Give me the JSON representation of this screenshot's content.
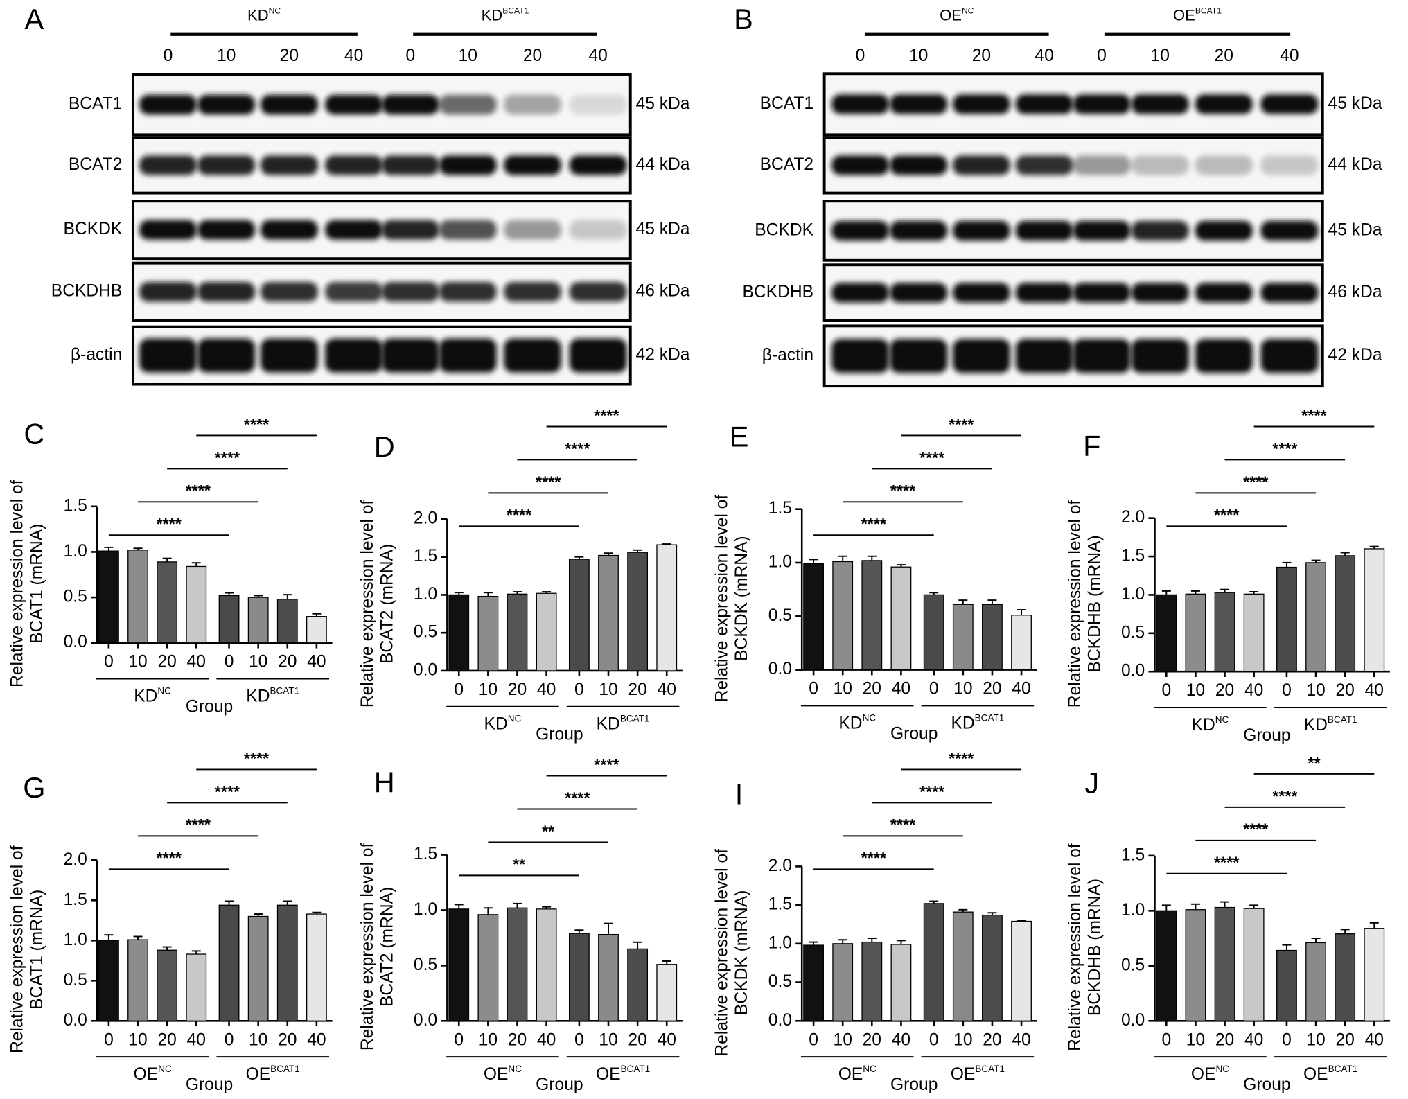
{
  "blots": [
    {
      "panel": "A",
      "groups": [
        {
          "base": "KD",
          "sup": "NC"
        },
        {
          "base": "KD",
          "sup": "BCAT1"
        }
      ],
      "lanes": [
        "0",
        "10",
        "20",
        "40",
        "0",
        "10",
        "20",
        "40"
      ],
      "rows": [
        {
          "protein": "BCAT1",
          "size": "45 kDa"
        },
        {
          "protein": "BCAT2",
          "size": "44 kDa"
        },
        {
          "protein": "BCKDK",
          "size": "45 kDa"
        },
        {
          "protein": "BCKDHB",
          "size": "46 kDa"
        },
        {
          "protein": "β-actin",
          "size": "42 kDa"
        }
      ]
    },
    {
      "panel": "B",
      "groups": [
        {
          "base": "OE",
          "sup": "NC"
        },
        {
          "base": "OE",
          "sup": "BCAT1"
        }
      ],
      "lanes": [
        "0",
        "10",
        "20",
        "40",
        "0",
        "10",
        "20",
        "40"
      ],
      "rows": [
        {
          "protein": "BCAT1",
          "size": "45 kDa"
        },
        {
          "protein": "BCAT2",
          "size": "44 kDa"
        },
        {
          "protein": "BCKDK",
          "size": "45 kDa"
        },
        {
          "protein": "BCKDHB",
          "size": "46 kDa"
        },
        {
          "protein": "β-actin",
          "size": "42 kDa"
        }
      ]
    }
  ],
  "chart_data": [
    {
      "type": "bar",
      "panel": "C",
      "ylabel": [
        "Relative expression level of",
        "BCAT1 (mRNA)"
      ],
      "xlabel": "Group",
      "categories": [
        "0",
        "10",
        "20",
        "40",
        "0",
        "10",
        "20",
        "40"
      ],
      "groups": [
        {
          "base": "KD",
          "sup": "NC"
        },
        {
          "base": "KD",
          "sup": "BCAT1"
        }
      ],
      "values": [
        1.01,
        1.02,
        0.89,
        0.84,
        0.52,
        0.5,
        0.48,
        0.29
      ],
      "errors": [
        0.04,
        0.02,
        0.04,
        0.04,
        0.03,
        0.02,
        0.05,
        0.03
      ],
      "colors": [
        "#111111",
        "#8c8c8c",
        "#555555",
        "#c8c8c8",
        "#4a4a4a",
        "#8a8a8a",
        "#4d4d4d",
        "#e6e6e6"
      ],
      "ylim": [
        0,
        1.5
      ],
      "yticks": [
        {
          "value": 0,
          "label": "0.0"
        },
        0.5,
        {
          "value": 1,
          "label": "1.0"
        },
        1.5
      ],
      "comparisons": [
        {
          "pair": [
            0,
            4
          ],
          "label": "****"
        },
        {
          "pair": [
            1,
            5
          ],
          "label": "****"
        },
        {
          "pair": [
            2,
            6
          ],
          "label": "****"
        },
        {
          "pair": [
            3,
            7
          ],
          "label": "****"
        }
      ]
    },
    {
      "type": "bar",
      "panel": "D",
      "ylabel": [
        "Relative expression level of",
        "BCAT2 (mRNA)"
      ],
      "xlabel": "Group",
      "categories": [
        "0",
        "10",
        "20",
        "40",
        "0",
        "10",
        "20",
        "40"
      ],
      "groups": [
        {
          "base": "KD",
          "sup": "NC"
        },
        {
          "base": "KD",
          "sup": "BCAT1"
        }
      ],
      "values": [
        1.0,
        0.98,
        1.01,
        1.02,
        1.47,
        1.52,
        1.56,
        1.66
      ],
      "errors": [
        0.03,
        0.05,
        0.03,
        0.02,
        0.03,
        0.03,
        0.03,
        0.01
      ],
      "colors": [
        "#111111",
        "#8c8c8c",
        "#555555",
        "#c8c8c8",
        "#4a4a4a",
        "#8a8a8a",
        "#4d4d4d",
        "#e6e6e6"
      ],
      "ylim": [
        0,
        2
      ],
      "yticks": [
        {
          "value": 0,
          "label": "0.0"
        },
        0.5,
        {
          "value": 1,
          "label": "1.0"
        },
        1.5,
        {
          "value": 2,
          "label": "2.0"
        }
      ],
      "comparisons": [
        {
          "pair": [
            0,
            4
          ],
          "label": "****"
        },
        {
          "pair": [
            1,
            5
          ],
          "label": "****"
        },
        {
          "pair": [
            2,
            6
          ],
          "label": "****"
        },
        {
          "pair": [
            3,
            7
          ],
          "label": "****"
        }
      ]
    },
    {
      "type": "bar",
      "panel": "E",
      "ylabel": [
        "Relative expression level of",
        "BCKDK (mRNA)"
      ],
      "xlabel": "Group",
      "categories": [
        "0",
        "10",
        "20",
        "40",
        "0",
        "10",
        "20",
        "40"
      ],
      "groups": [
        {
          "base": "KD",
          "sup": "NC"
        },
        {
          "base": "KD",
          "sup": "BCAT1"
        }
      ],
      "values": [
        0.99,
        1.01,
        1.02,
        0.96,
        0.7,
        0.61,
        0.61,
        0.51
      ],
      "errors": [
        0.04,
        0.05,
        0.04,
        0.02,
        0.02,
        0.04,
        0.04,
        0.05
      ],
      "colors": [
        "#111111",
        "#8c8c8c",
        "#555555",
        "#c8c8c8",
        "#4a4a4a",
        "#8a8a8a",
        "#4d4d4d",
        "#e6e6e6"
      ],
      "ylim": [
        0,
        1.5
      ],
      "yticks": [
        {
          "value": 0,
          "label": "0.0"
        },
        0.5,
        {
          "value": 1,
          "label": "1.0"
        },
        1.5
      ],
      "comparisons": [
        {
          "pair": [
            0,
            4
          ],
          "label": "****"
        },
        {
          "pair": [
            1,
            5
          ],
          "label": "****"
        },
        {
          "pair": [
            2,
            6
          ],
          "label": "****"
        },
        {
          "pair": [
            3,
            7
          ],
          "label": "****"
        }
      ]
    },
    {
      "type": "bar",
      "panel": "F",
      "ylabel": [
        "Relative expression level of",
        "BCKDHB (mRNA)"
      ],
      "xlabel": "Group",
      "categories": [
        "0",
        "10",
        "20",
        "40",
        "0",
        "10",
        "20",
        "40"
      ],
      "groups": [
        {
          "base": "KD",
          "sup": "NC"
        },
        {
          "base": "KD",
          "sup": "BCAT1"
        }
      ],
      "values": [
        1.0,
        1.01,
        1.03,
        1.01,
        1.36,
        1.42,
        1.51,
        1.6
      ],
      "errors": [
        0.05,
        0.04,
        0.04,
        0.03,
        0.06,
        0.03,
        0.04,
        0.03
      ],
      "colors": [
        "#111111",
        "#8c8c8c",
        "#555555",
        "#c8c8c8",
        "#4a4a4a",
        "#8a8a8a",
        "#4d4d4d",
        "#e6e6e6"
      ],
      "ylim": [
        0,
        2
      ],
      "yticks": [
        {
          "value": 0,
          "label": "0.0"
        },
        0.5,
        {
          "value": 1,
          "label": "1.0"
        },
        1.5,
        {
          "value": 2,
          "label": "2.0"
        }
      ],
      "comparisons": [
        {
          "pair": [
            0,
            4
          ],
          "label": "****"
        },
        {
          "pair": [
            1,
            5
          ],
          "label": "****"
        },
        {
          "pair": [
            2,
            6
          ],
          "label": "****"
        },
        {
          "pair": [
            3,
            7
          ],
          "label": "****"
        }
      ]
    },
    {
      "type": "bar",
      "panel": "G",
      "ylabel": [
        "Relative expression level of",
        "BCAT1 (mRNA)"
      ],
      "xlabel": "Group",
      "categories": [
        "0",
        "10",
        "20",
        "40",
        "0",
        "10",
        "20",
        "40"
      ],
      "groups": [
        {
          "base": "OE",
          "sup": "NC"
        },
        {
          "base": "OE",
          "sup": "BCAT1"
        }
      ],
      "values": [
        1.0,
        1.01,
        0.88,
        0.83,
        1.44,
        1.3,
        1.44,
        1.33
      ],
      "errors": [
        0.07,
        0.04,
        0.04,
        0.04,
        0.05,
        0.03,
        0.05,
        0.02
      ],
      "colors": [
        "#111111",
        "#8c8c8c",
        "#555555",
        "#c8c8c8",
        "#4a4a4a",
        "#8a8a8a",
        "#4d4d4d",
        "#e6e6e6"
      ],
      "ylim": [
        0,
        2
      ],
      "yticks": [
        {
          "value": 0,
          "label": "0.0"
        },
        0.5,
        {
          "value": 1,
          "label": "1.0"
        },
        1.5,
        {
          "value": 2,
          "label": "2.0"
        }
      ],
      "comparisons": [
        {
          "pair": [
            0,
            4
          ],
          "label": "****"
        },
        {
          "pair": [
            1,
            5
          ],
          "label": "****"
        },
        {
          "pair": [
            2,
            6
          ],
          "label": "****"
        },
        {
          "pair": [
            3,
            7
          ],
          "label": "****"
        }
      ]
    },
    {
      "type": "bar",
      "panel": "H",
      "ylabel": [
        "Relative expression level of",
        "BCAT2 (mRNA)"
      ],
      "xlabel": "Group",
      "categories": [
        "0",
        "10",
        "20",
        "40",
        "0",
        "10",
        "20",
        "40"
      ],
      "groups": [
        {
          "base": "OE",
          "sup": "NC"
        },
        {
          "base": "OE",
          "sup": "BCAT1"
        }
      ],
      "values": [
        1.01,
        0.96,
        1.02,
        1.01,
        0.79,
        0.78,
        0.65,
        0.51
      ],
      "errors": [
        0.04,
        0.06,
        0.04,
        0.02,
        0.03,
        0.1,
        0.06,
        0.03
      ],
      "colors": [
        "#111111",
        "#8c8c8c",
        "#555555",
        "#c8c8c8",
        "#4a4a4a",
        "#8a8a8a",
        "#4d4d4d",
        "#e6e6e6"
      ],
      "ylim": [
        0,
        1.5
      ],
      "yticks": [
        {
          "value": 0,
          "label": "0.0"
        },
        0.5,
        {
          "value": 1,
          "label": "1.0"
        },
        1.5
      ],
      "comparisons": [
        {
          "pair": [
            0,
            4
          ],
          "label": "**"
        },
        {
          "pair": [
            1,
            5
          ],
          "label": "**"
        },
        {
          "pair": [
            2,
            6
          ],
          "label": "****"
        },
        {
          "pair": [
            3,
            7
          ],
          "label": "****"
        }
      ]
    },
    {
      "type": "bar",
      "panel": "I",
      "ylabel": [
        "Relative expression level of",
        "BCKDK (mRNA)"
      ],
      "xlabel": "Group",
      "categories": [
        "0",
        "10",
        "20",
        "40",
        "0",
        "10",
        "20",
        "40"
      ],
      "groups": [
        {
          "base": "OE",
          "sup": "NC"
        },
        {
          "base": "OE",
          "sup": "BCAT1"
        }
      ],
      "values": [
        0.98,
        1.0,
        1.02,
        0.99,
        1.52,
        1.41,
        1.37,
        1.29
      ],
      "errors": [
        0.04,
        0.05,
        0.05,
        0.05,
        0.03,
        0.03,
        0.03,
        0.01
      ],
      "colors": [
        "#111111",
        "#8c8c8c",
        "#555555",
        "#c8c8c8",
        "#4a4a4a",
        "#8a8a8a",
        "#4d4d4d",
        "#e6e6e6"
      ],
      "ylim": [
        0,
        2
      ],
      "yticks": [
        {
          "value": 0,
          "label": "0.0"
        },
        0.5,
        {
          "value": 1,
          "label": "1.0"
        },
        1.5,
        {
          "value": 2,
          "label": "2.0"
        }
      ],
      "comparisons": [
        {
          "pair": [
            0,
            4
          ],
          "label": "****"
        },
        {
          "pair": [
            1,
            5
          ],
          "label": "****"
        },
        {
          "pair": [
            2,
            6
          ],
          "label": "****"
        },
        {
          "pair": [
            3,
            7
          ],
          "label": "****"
        }
      ]
    },
    {
      "type": "bar",
      "panel": "J",
      "ylabel": [
        "Relative expression level of",
        "BCKDHB (mRNA)"
      ],
      "xlabel": "Group",
      "categories": [
        "0",
        "10",
        "20",
        "40",
        "0",
        "10",
        "20",
        "40"
      ],
      "groups": [
        {
          "base": "OE",
          "sup": "NC"
        },
        {
          "base": "OE",
          "sup": "BCAT1"
        }
      ],
      "values": [
        1.0,
        1.01,
        1.03,
        1.02,
        0.64,
        0.71,
        0.79,
        0.84
      ],
      "errors": [
        0.05,
        0.05,
        0.05,
        0.03,
        0.05,
        0.04,
        0.04,
        0.05
      ],
      "colors": [
        "#111111",
        "#8c8c8c",
        "#555555",
        "#c8c8c8",
        "#4a4a4a",
        "#8a8a8a",
        "#4d4d4d",
        "#e6e6e6"
      ],
      "ylim": [
        0,
        1.5
      ],
      "yticks": [
        {
          "value": 0,
          "label": "0.0"
        },
        0.5,
        {
          "value": 1,
          "label": "1.0"
        },
        1.5
      ],
      "comparisons": [
        {
          "pair": [
            0,
            4
          ],
          "label": "****"
        },
        {
          "pair": [
            1,
            5
          ],
          "label": "****"
        },
        {
          "pair": [
            2,
            6
          ],
          "label": "****"
        },
        {
          "pair": [
            3,
            7
          ],
          "label": "**"
        }
      ]
    }
  ]
}
